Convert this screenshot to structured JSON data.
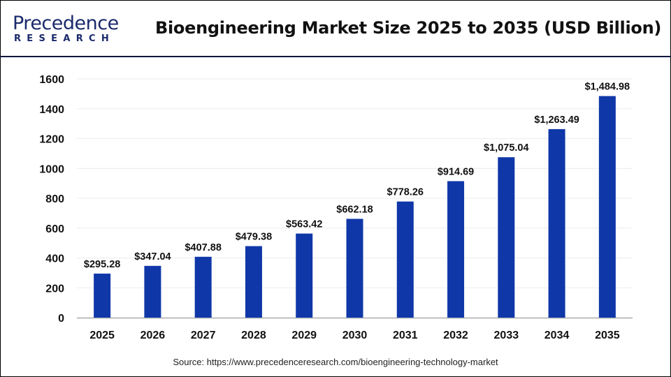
{
  "logo": {
    "text_main": "Precedence",
    "text_sub": "RESEARCH"
  },
  "chart_data": {
    "type": "bar",
    "title": "Bioengineering Market Size 2025 to 2035 (USD Billion)",
    "categories": [
      "2025",
      "2026",
      "2027",
      "2028",
      "2029",
      "2030",
      "2031",
      "2032",
      "2033",
      "2034",
      "2035"
    ],
    "values": [
      295.28,
      347.04,
      407.88,
      479.38,
      563.42,
      662.18,
      778.26,
      914.69,
      1075.04,
      1263.49,
      1484.98
    ],
    "data_labels": [
      "$295.28",
      "$347.04",
      "$407.88",
      "$479.38",
      "$563.42",
      "$662.18",
      "$778.26",
      "$914.69",
      "$1,075.04",
      "$1,263.49",
      "$1,484.98"
    ],
    "yticks": [
      0,
      200,
      400,
      600,
      800,
      1000,
      1200,
      1400,
      1600
    ],
    "ylim": [
      0,
      1600
    ],
    "xlabel": "",
    "ylabel": "",
    "grid": true,
    "bar_color": "#0f37a8"
  },
  "source": "Source: https://www.precedenceresearch.com/bioengineering-technology-market"
}
